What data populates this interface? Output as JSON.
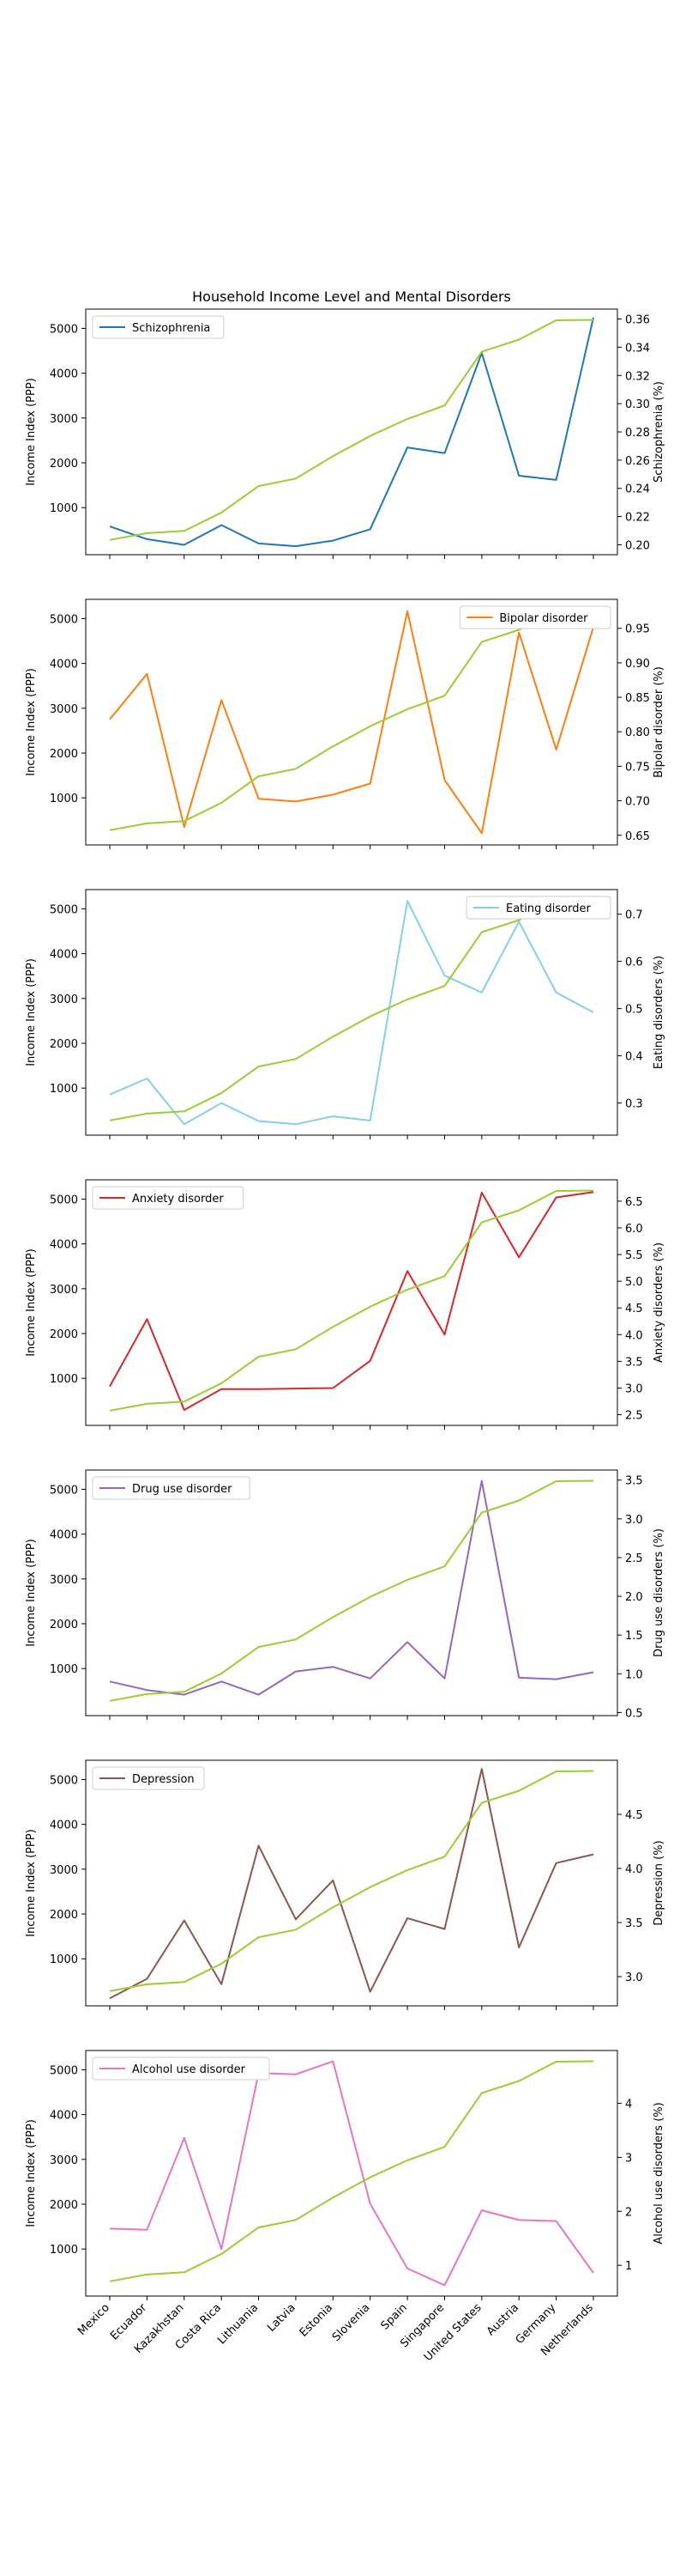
{
  "chart_data": {
    "type": "line",
    "title": "Household Income Level and Mental Disorders",
    "categories": [
      "Mexico",
      "Ecuador",
      "Kazakhstan",
      "Costa Rica",
      "Lithuania",
      "Latvia",
      "Estonia",
      "Slovenia",
      "Spain",
      "Singapore",
      "United States",
      "Austria",
      "Germany",
      "Netherlands"
    ],
    "income": {
      "ylabel": "Income Index (PPP)",
      "color": "#9acd32",
      "values": [
        280,
        430,
        480,
        890,
        1480,
        1650,
        2150,
        2600,
        2980,
        3280,
        4480,
        4750,
        5180,
        5190
      ],
      "yticks": [
        1000,
        2000,
        3000,
        4000,
        5000
      ]
    },
    "panels": [
      {
        "name": "Schizophrenia",
        "ylabel": "Schizophrenia (%)",
        "color": "#1f77b4",
        "legend_position": "top-left",
        "values": [
          0.213,
          0.204,
          0.2,
          0.214,
          0.201,
          0.199,
          0.203,
          0.211,
          0.269,
          0.265,
          0.336,
          0.249,
          0.246,
          0.361
        ],
        "ylim": [
          0.193,
          0.367
        ],
        "yticks": [
          0.2,
          0.22,
          0.24,
          0.26,
          0.28,
          0.3,
          0.32,
          0.34,
          0.36
        ],
        "tick_labels": [
          "0.20",
          "0.22",
          "0.24",
          "0.26",
          "0.28",
          "0.30",
          "0.32",
          "0.34",
          "0.36"
        ],
        "income_ylim": [
          -50,
          5430
        ]
      },
      {
        "name": "Bipolar disorder",
        "ylabel": "Bipolar disorder (%)",
        "color": "#ff7f0e",
        "legend_position": "top-right",
        "values": [
          0.818,
          0.884,
          0.662,
          0.846,
          0.703,
          0.699,
          0.709,
          0.725,
          0.975,
          0.73,
          0.653,
          0.944,
          0.774,
          0.952
        ],
        "ylim": [
          0.636,
          0.992
        ],
        "yticks": [
          0.65,
          0.7,
          0.75,
          0.8,
          0.85,
          0.9,
          0.95
        ],
        "tick_labels": [
          "0.65",
          "0.70",
          "0.75",
          "0.80",
          "0.85",
          "0.90",
          "0.95"
        ],
        "income_ylim": [
          -50,
          5430
        ]
      },
      {
        "name": "Eating disorder",
        "ylabel": "Eating disorders (%)",
        "color": "#87ceeb",
        "legend_position": "top-right",
        "values": [
          0.318,
          0.352,
          0.255,
          0.3,
          0.262,
          0.255,
          0.272,
          0.263,
          0.728,
          0.57,
          0.534,
          0.684,
          0.534,
          0.492
        ],
        "ylim": [
          0.232,
          0.752
        ],
        "yticks": [
          0.3,
          0.4,
          0.5,
          0.6,
          0.7
        ],
        "tick_labels": [
          "0.3",
          "0.4",
          "0.5",
          "0.6",
          "0.7"
        ],
        "income_ylim": [
          -50,
          5430
        ]
      },
      {
        "name": "Anxiety disorder",
        "ylabel": "Anxiety disorders (%)",
        "color": "#d62728",
        "legend_position": "top-left",
        "values": [
          3.03,
          4.29,
          2.59,
          2.98,
          2.98,
          2.99,
          3.0,
          3.51,
          5.19,
          4.0,
          6.66,
          5.45,
          6.57,
          6.67
        ],
        "ylim": [
          2.3,
          6.9
        ],
        "yticks": [
          2.5,
          3.0,
          3.5,
          4.0,
          4.5,
          5.0,
          5.5,
          6.0,
          6.5
        ],
        "tick_labels": [
          "2.5",
          "3.0",
          "3.5",
          "4.0",
          "4.5",
          "5.0",
          "5.5",
          "6.0",
          "6.5"
        ],
        "income_ylim": [
          -50,
          5430
        ]
      },
      {
        "name": "Drug use disorder",
        "ylabel": "Drug use disorders (%)",
        "color": "#9467bd",
        "legend_position": "top-left",
        "values": [
          0.9,
          0.79,
          0.73,
          0.9,
          0.73,
          1.03,
          1.09,
          0.94,
          1.41,
          0.94,
          3.49,
          0.95,
          0.93,
          1.02
        ],
        "ylim": [
          0.46,
          3.63
        ],
        "yticks": [
          0.5,
          1.0,
          1.5,
          2.0,
          2.5,
          3.0,
          3.5
        ],
        "tick_labels": [
          "0.5",
          "1.0",
          "1.5",
          "2.0",
          "2.5",
          "3.0",
          "3.5"
        ],
        "income_ylim": [
          -50,
          5430
        ]
      },
      {
        "name": "Depression",
        "ylabel": "Depression (%)",
        "color": "#8c564b",
        "legend_position": "top-left",
        "values": [
          2.8,
          2.98,
          3.52,
          2.93,
          4.21,
          3.53,
          3.89,
          2.86,
          3.54,
          3.44,
          4.92,
          3.27,
          4.05,
          4.13
        ],
        "ylim": [
          2.73,
          5.0
        ],
        "yticks": [
          3.0,
          3.5,
          4.0,
          4.5
        ],
        "tick_labels": [
          "3.0",
          "3.5",
          "4.0",
          "4.5"
        ],
        "income_ylim": [
          -50,
          5430
        ]
      },
      {
        "name": "Alcohol use disorder",
        "ylabel": "Alcohol use disorders (%)",
        "color": "#e377c2",
        "legend_position": "top-left",
        "values": [
          1.68,
          1.66,
          3.36,
          1.3,
          4.56,
          4.54,
          4.78,
          2.14,
          0.94,
          0.63,
          2.02,
          1.84,
          1.82,
          0.86
        ],
        "ylim": [
          0.43,
          4.98
        ],
        "yticks": [
          1,
          2,
          3,
          4
        ],
        "tick_labels": [
          "1",
          "2",
          "3",
          "4"
        ],
        "income_ylim": [
          -50,
          5430
        ]
      }
    ]
  }
}
